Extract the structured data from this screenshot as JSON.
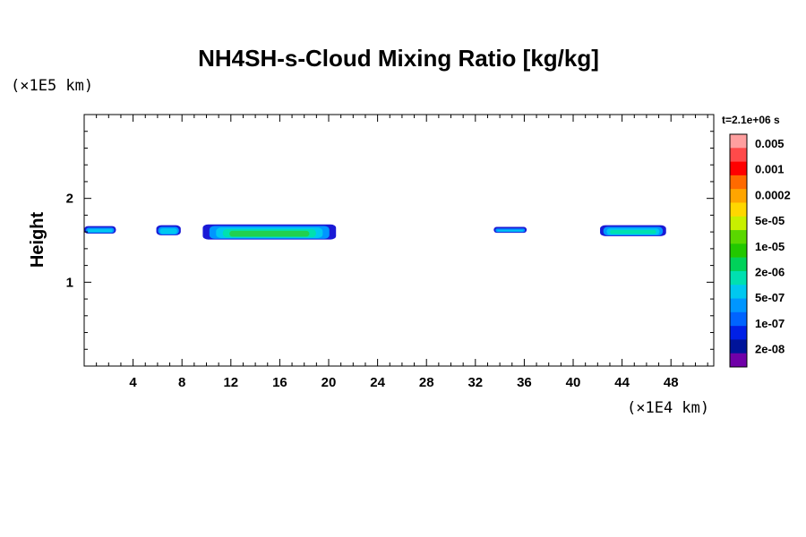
{
  "chart_data": {
    "type": "heatmap",
    "title": "NH4SH-s-Cloud Mixing Ratio [kg/kg]",
    "ylabel": "Height",
    "y_unit": "(×1E5 km)",
    "x_unit": "(×1E4 km)",
    "time_label": "t=2.1e+06 s",
    "xlim": [
      0,
      51.5
    ],
    "ylim": [
      0,
      3
    ],
    "x_ticks": [
      "4",
      "8",
      "12",
      "16",
      "20",
      "24",
      "28",
      "32",
      "36",
      "40",
      "44",
      "48"
    ],
    "y_ticks": [
      "1",
      "2"
    ],
    "colorbar": {
      "labels": [
        "0.005",
        "0.001",
        "0.0002",
        "5e-05",
        "1e-05",
        "2e-06",
        "5e-07",
        "1e-07",
        "2e-08"
      ],
      "colors": [
        "#ff9f9f",
        "#ff4a4a",
        "#ff0000",
        "#ff6a00",
        "#ffa500",
        "#ffd700",
        "#c8f000",
        "#5ad700",
        "#22c800",
        "#00d25a",
        "#00e0b0",
        "#00c8f0",
        "#0096ff",
        "#0064ff",
        "#0020e6",
        "#00149a",
        "#7000a8"
      ]
    },
    "cloud_layers": [
      {
        "x_range": [
          0,
          2.6
        ],
        "y_range": [
          1.58,
          1.67
        ],
        "max_level": "1e-07"
      },
      {
        "x_range": [
          5.9,
          7.9
        ],
        "y_range": [
          1.56,
          1.68
        ],
        "max_level": "1e-07"
      },
      {
        "x_range": [
          9.7,
          20.6
        ],
        "y_range": [
          1.51,
          1.69
        ],
        "max_level": "2e-06"
      },
      {
        "x_range": [
          33.5,
          36.2
        ],
        "y_range": [
          1.59,
          1.66
        ],
        "max_level": "1e-07"
      },
      {
        "x_range": [
          42.2,
          47.6
        ],
        "y_range": [
          1.55,
          1.68
        ],
        "max_level": "5e-07"
      }
    ]
  }
}
